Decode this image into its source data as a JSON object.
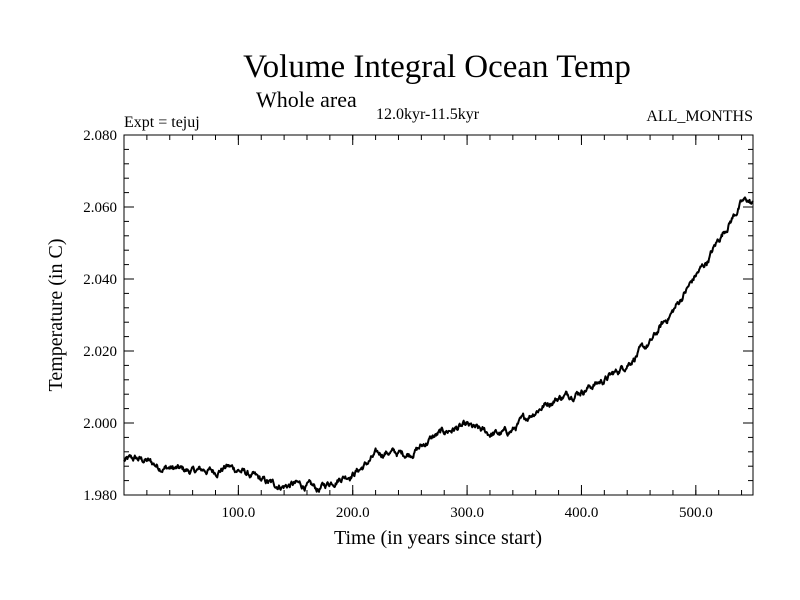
{
  "chart_data": {
    "type": "line",
    "title": "Volume Integral Ocean Temp",
    "subtitle": "Whole area",
    "period_label": "12.0kyr-11.5kyr",
    "expt_label": "Expt = tejuj",
    "months_label": "ALL_MONTHS",
    "xlabel": "Time (in years since start)",
    "ylabel": "Temperature (in C)",
    "xlim": [
      0,
      550
    ],
    "ylim": [
      1.98,
      2.08
    ],
    "x_ticks": [
      100,
      200,
      300,
      400,
      500
    ],
    "x_tick_labels": [
      "100.0",
      "200.0",
      "300.0",
      "400.0",
      "500.0"
    ],
    "x_minor_step": 20,
    "y_ticks": [
      1.98,
      2.0,
      2.02,
      2.04,
      2.06,
      2.08
    ],
    "y_tick_labels": [
      "1.980",
      "2.000",
      "2.020",
      "2.040",
      "2.060",
      "2.080"
    ],
    "y_minor_step": 0.004,
    "grid": false,
    "series": [
      {
        "name": "Volume integral ocean temperature",
        "color": "#000000",
        "x": [
          0,
          10,
          20,
          30,
          40,
          50,
          60,
          70,
          80,
          90,
          100,
          110,
          120,
          130,
          140,
          150,
          160,
          170,
          180,
          190,
          200,
          210,
          220,
          230,
          240,
          250,
          260,
          270,
          280,
          290,
          300,
          310,
          320,
          330,
          340,
          350,
          360,
          370,
          380,
          390,
          400,
          410,
          420,
          430,
          440,
          450,
          460,
          470,
          480,
          490,
          500,
          510,
          520,
          530,
          540,
          545,
          550
        ],
        "values": [
          1.9895,
          1.99,
          1.9895,
          1.988,
          1.9875,
          1.987,
          1.9865,
          1.987,
          1.9865,
          1.988,
          1.987,
          1.9855,
          1.984,
          1.983,
          1.9825,
          1.983,
          1.9825,
          1.9815,
          1.9835,
          1.985,
          1.986,
          1.988,
          1.991,
          1.992,
          1.9915,
          1.9915,
          1.9935,
          1.996,
          1.9975,
          1.9985,
          1.999,
          1.998,
          1.997,
          1.997,
          1.998,
          2.001,
          2.0035,
          2.0055,
          2.007,
          2.008,
          2.009,
          2.0105,
          2.012,
          2.014,
          2.0165,
          2.0195,
          2.022,
          2.027,
          2.031,
          2.036,
          2.041,
          2.045,
          2.051,
          2.056,
          2.061,
          2.062,
          2.0605
        ]
      }
    ]
  }
}
